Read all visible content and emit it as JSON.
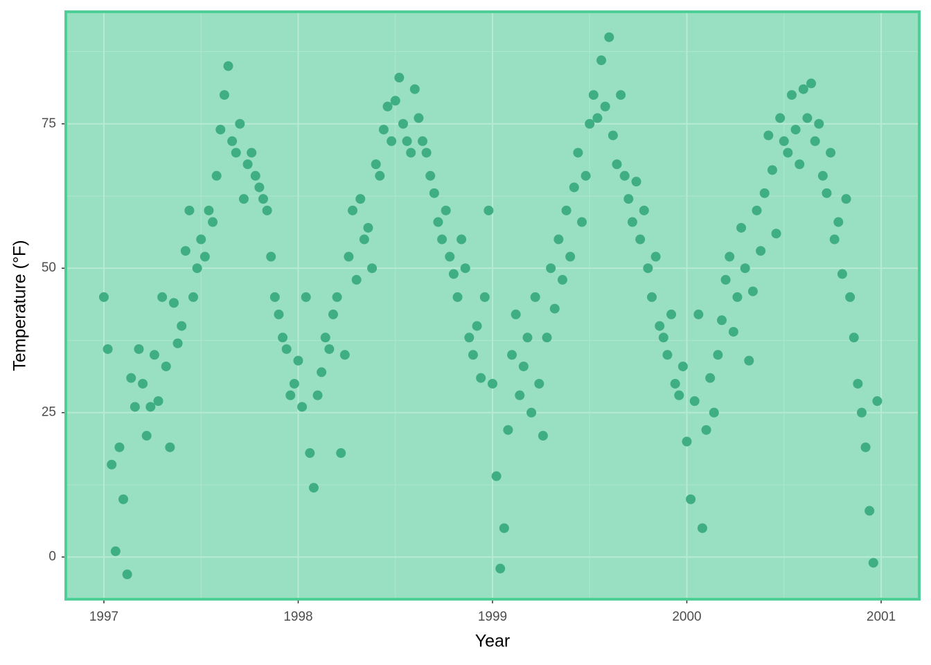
{
  "chart_data": {
    "type": "scatter",
    "x_label": "Year",
    "y_label": "Temperature (°F)",
    "color": "#3fae80",
    "panel_fill": "#99e0c2",
    "panel_border": "#4ecf98",
    "grid": true,
    "xlim": [
      1996.804,
      2001.196
    ],
    "ylim": [
      -7.3,
      94.4
    ],
    "xticks": [
      1997,
      1998,
      1999,
      2000,
      2001
    ],
    "yticks": [
      0,
      25,
      50,
      75
    ],
    "series": [
      {
        "name": "Temperature",
        "x": [
          1997.0,
          1997.02,
          1997.04,
          1997.06,
          1997.08,
          1997.1,
          1997.12,
          1997.14,
          1997.16,
          1997.18,
          1997.2,
          1997.22,
          1997.24,
          1997.26,
          1997.28,
          1997.3,
          1997.32,
          1997.34,
          1997.36,
          1997.38,
          1997.4,
          1997.42,
          1997.44,
          1997.46,
          1997.48,
          1997.5,
          1997.52,
          1997.54,
          1997.56,
          1997.58,
          1997.6,
          1997.62,
          1997.64,
          1997.66,
          1997.68,
          1997.7,
          1997.72,
          1997.74,
          1997.76,
          1997.78,
          1997.8,
          1997.82,
          1997.84,
          1997.86,
          1997.88,
          1997.9,
          1997.92,
          1997.94,
          1997.96,
          1997.98,
          1998.0,
          1998.02,
          1998.04,
          1998.06,
          1998.08,
          1998.1,
          1998.12,
          1998.14,
          1998.16,
          1998.18,
          1998.2,
          1998.22,
          1998.24,
          1998.26,
          1998.28,
          1998.3,
          1998.32,
          1998.34,
          1998.36,
          1998.38,
          1998.4,
          1998.42,
          1998.44,
          1998.46,
          1998.48,
          1998.5,
          1998.52,
          1998.54,
          1998.56,
          1998.58,
          1998.6,
          1998.62,
          1998.64,
          1998.66,
          1998.68,
          1998.7,
          1998.72,
          1998.74,
          1998.76,
          1998.78,
          1998.8,
          1998.82,
          1998.84,
          1998.86,
          1998.88,
          1998.9,
          1998.92,
          1998.94,
          1998.96,
          1998.98,
          1999.0,
          1999.02,
          1999.04,
          1999.06,
          1999.08,
          1999.1,
          1999.12,
          1999.14,
          1999.16,
          1999.18,
          1999.2,
          1999.22,
          1999.24,
          1999.26,
          1999.28,
          1999.3,
          1999.32,
          1999.34,
          1999.36,
          1999.38,
          1999.4,
          1999.42,
          1999.44,
          1999.46,
          1999.48,
          1999.5,
          1999.52,
          1999.54,
          1999.56,
          1999.58,
          1999.6,
          1999.62,
          1999.64,
          1999.66,
          1999.68,
          1999.7,
          1999.72,
          1999.74,
          1999.76,
          1999.78,
          1999.8,
          1999.82,
          1999.84,
          1999.86,
          1999.88,
          1999.9,
          1999.92,
          1999.94,
          1999.96,
          1999.98,
          2000.0,
          2000.02,
          2000.04,
          2000.06,
          2000.08,
          2000.1,
          2000.12,
          2000.14,
          2000.16,
          2000.18,
          2000.2,
          2000.22,
          2000.24,
          2000.26,
          2000.28,
          2000.3,
          2000.32,
          2000.34,
          2000.36,
          2000.38,
          2000.4,
          2000.42,
          2000.44,
          2000.46,
          2000.48,
          2000.5,
          2000.52,
          2000.54,
          2000.56,
          2000.58,
          2000.6,
          2000.62,
          2000.64,
          2000.66,
          2000.68,
          2000.7,
          2000.72,
          2000.74,
          2000.76,
          2000.78,
          2000.8,
          2000.82,
          2000.84,
          2000.86,
          2000.88,
          2000.9,
          2000.92,
          2000.94,
          2000.96,
          2000.98
        ],
        "values": [
          45,
          36,
          16,
          1,
          19,
          10,
          -3,
          31,
          26,
          36,
          30,
          21,
          26,
          35,
          27,
          45,
          33,
          19,
          44,
          37,
          40,
          53,
          60,
          45,
          50,
          55,
          52,
          60,
          58,
          66,
          74,
          80,
          85,
          72,
          70,
          75,
          62,
          68,
          70,
          66,
          64,
          62,
          60,
          52,
          45,
          42,
          38,
          36,
          28,
          30,
          34,
          26,
          45,
          18,
          12,
          28,
          32,
          38,
          36,
          42,
          45,
          18,
          35,
          52,
          60,
          48,
          62,
          55,
          57,
          50,
          68,
          66,
          74,
          78,
          72,
          79,
          83,
          75,
          72,
          70,
          81,
          76,
          72,
          70,
          66,
          63,
          58,
          55,
          60,
          52,
          49,
          45,
          55,
          50,
          38,
          35,
          40,
          31,
          45,
          60,
          30,
          14,
          -2,
          5,
          22,
          35,
          42,
          28,
          33,
          38,
          25,
          45,
          30,
          21,
          38,
          50,
          43,
          55,
          48,
          60,
          52,
          64,
          70,
          58,
          66,
          75,
          80,
          76,
          86,
          78,
          90,
          73,
          68,
          80,
          66,
          62,
          58,
          65,
          55,
          60,
          50,
          45,
          52,
          40,
          38,
          35,
          42,
          30,
          28,
          33,
          20,
          10,
          27,
          42,
          5,
          22,
          31,
          25,
          35,
          41,
          48,
          52,
          39,
          45,
          57,
          50,
          34,
          46,
          60,
          53,
          63,
          73,
          67,
          56,
          76,
          72,
          70,
          80,
          74,
          68,
          81,
          76,
          82,
          72,
          75,
          66,
          63,
          70,
          55,
          58,
          49,
          62,
          45,
          38,
          30,
          25,
          19,
          8,
          -1,
          27
        ]
      }
    ]
  }
}
